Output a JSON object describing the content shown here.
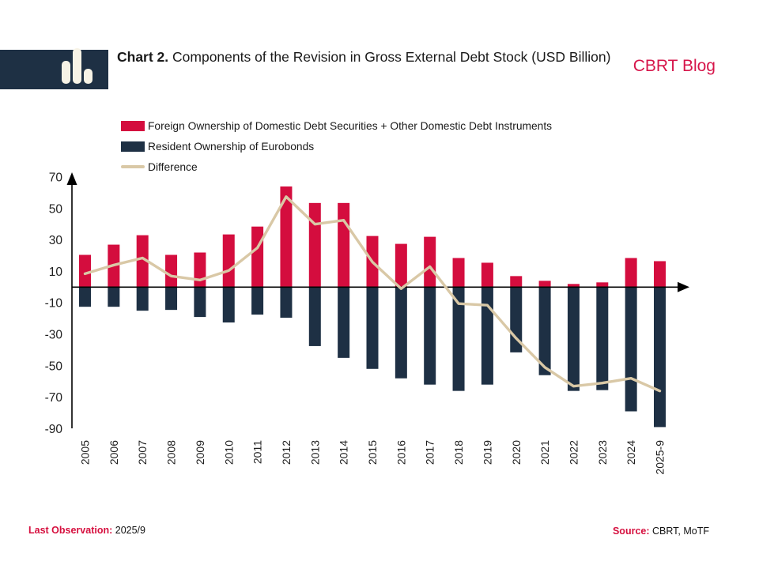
{
  "header": {
    "title_prefix": "Chart 2.",
    "title_rest": " Components of the Revision in Gross External Debt Stock (USD Billion)",
    "blog_label": "CBRT Blog",
    "logo_icon": "bar-chart-icon"
  },
  "legend": {
    "items": [
      {
        "label": "Foreign Ownership of Domestic Debt Securities + Other Domestic Debt Instruments",
        "color": "#d40d3e",
        "style": "swatch"
      },
      {
        "label": "Resident Ownership of Eurobonds",
        "color": "#1e3044",
        "style": "swatch"
      },
      {
        "label": "Difference",
        "color": "#d9c8a6",
        "style": "line"
      }
    ]
  },
  "chart_data": {
    "type": "bar",
    "title": "Components of the Revision in Gross External Debt Stock (USD Billion)",
    "categories": [
      "2005",
      "2006",
      "2007",
      "2008",
      "2009",
      "2010",
      "2011",
      "2012",
      "2013",
      "2014",
      "2015",
      "2016",
      "2017",
      "2018",
      "2019",
      "2020",
      "2021",
      "2022",
      "2023",
      "2024",
      "2025-9"
    ],
    "series": [
      {
        "name": "Foreign Ownership of Domestic Debt Securities + Other Domestic Debt Instruments",
        "type": "bar",
        "color": "#d40d3e",
        "values": [
          20.5,
          27,
          33,
          20.5,
          22,
          33.5,
          38.5,
          64,
          53.5,
          53.5,
          32.5,
          27.5,
          32,
          18.5,
          15.5,
          7,
          4,
          2,
          3,
          18.5,
          16.5
        ]
      },
      {
        "name": "Resident Ownership of Eurobonds",
        "type": "bar",
        "color": "#1e3044",
        "values": [
          -12.5,
          -12.5,
          -15,
          -14.5,
          -19,
          -22.5,
          -17.5,
          -19.5,
          -37.5,
          -45,
          -52,
          -58,
          -62,
          -66,
          -62,
          -41.5,
          -56,
          -66,
          -65.5,
          -79,
          -89
        ]
      },
      {
        "name": "Difference",
        "type": "line",
        "color": "#d9c8a6",
        "values": [
          8.5,
          14,
          18.5,
          7,
          4.5,
          10.5,
          25,
          57.5,
          40,
          42.5,
          16,
          -1,
          13,
          -10.5,
          -11.5,
          -32.5,
          -51,
          -63,
          -61,
          -58,
          -66
        ]
      }
    ],
    "xlabel": "",
    "ylabel": "",
    "ylim": [
      -90,
      70
    ],
    "yticks": [
      70,
      50,
      30,
      10,
      -10,
      -30,
      -50,
      -70,
      -90
    ],
    "grid": false,
    "legend_position": "top-left",
    "axis_color": "#000000",
    "tick_label_color": "#1f1f1f"
  },
  "footer": {
    "last_observation_label": "Last Observation:",
    "last_observation_value": " 2025/9",
    "source_label": "Source:",
    "source_value": " CBRT, MoTF"
  }
}
